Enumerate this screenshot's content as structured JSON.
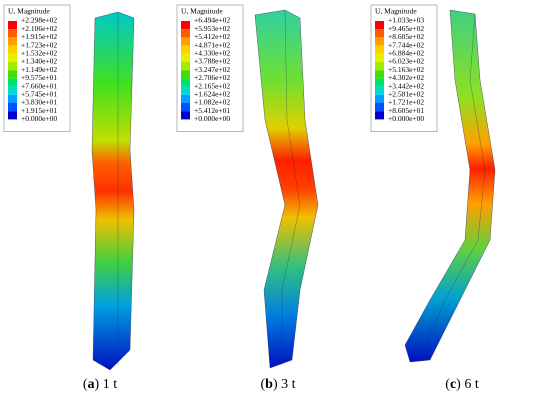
{
  "panels": [
    {
      "legend_title": "U, Magnitude",
      "legend_labels": [
        "+2.298e+02",
        "+2.106e+02",
        "+1.915e+02",
        "+1.723e+02",
        "+1.532e+02",
        "+1.340e+02",
        "+1.149e+02",
        "+9.575e+01",
        "+7.660e+01",
        "+5.745e+01",
        "+3.830e+01",
        "+1.915e+01",
        "+0.000e+00"
      ],
      "caption": [
        "(",
        "a",
        ") 1 t"
      ]
    },
    {
      "legend_title": "U, Magnitude",
      "legend_labels": [
        "+6.494e+02",
        "+5.953e+02",
        "+5.412e+02",
        "+4.871e+02",
        "+4.330e+02",
        "+3.788e+02",
        "+3.247e+02",
        "+2.706e+02",
        "+2.165e+02",
        "+1.624e+02",
        "+1.082e+02",
        "+5.412e+01",
        "+0.000e+00"
      ],
      "caption": [
        "(",
        "b",
        ") 3 t"
      ]
    },
    {
      "legend_title": "U, Magnitude",
      "legend_labels": [
        "+1.033e+03",
        "+9.465e+02",
        "+8.605e+02",
        "+7.744e+02",
        "+6.884e+02",
        "+6.023e+02",
        "+5.163e+02",
        "+4.302e+02",
        "+3.442e+02",
        "+2.581e+02",
        "+1.721e+02",
        "+8.605e+01",
        "+0.000e+00"
      ],
      "caption": [
        "(",
        "c",
        ") 6 t"
      ]
    }
  ]
}
